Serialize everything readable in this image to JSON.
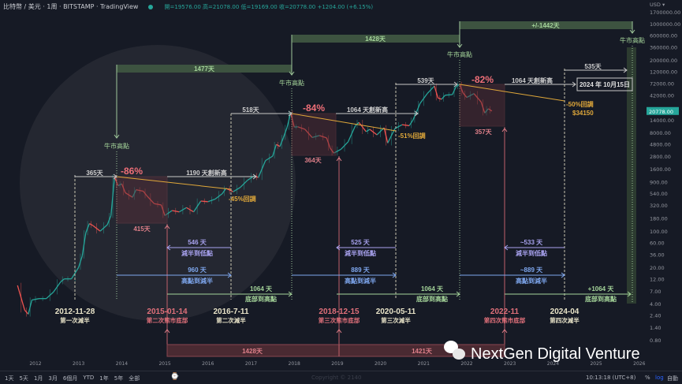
{
  "header": {
    "symbol": "比特幣 / 美元",
    "interval": "1周",
    "exchange": "BITSTAMP",
    "source": "TradingView",
    "ohlc": "開=19576.00 高=21078.00 低=19169.00 收=20778.00 +1204.00 (+6.15%)"
  },
  "colors": {
    "background": "#161a25",
    "up": "#26a69a",
    "down": "#ef5350",
    "peak": "#9fc79a",
    "bottom": "#e0707a",
    "halving": "#e8e3c8",
    "trend": "#e0a83a",
    "purple": "#a9a3f0",
    "blue": "#7fa8f0",
    "green": "#a5d59a"
  },
  "chart_data": {
    "type": "candlestick-line",
    "scale": "log",
    "currency_label": "USD ▾",
    "last_price": "20778.00",
    "y_ticks": [
      "1700000.00",
      "1000000.00",
      "600000.00",
      "360000.00",
      "200000.00",
      "120000.00",
      "72000.00",
      "42000.00",
      "14000.00",
      "8000.00",
      "4800.00",
      "2800.00",
      "1600.00",
      "900.00",
      "540.00",
      "320.00",
      "180.00",
      "100.00",
      "60.00",
      "36.00",
      "20.00",
      "12.00",
      "7.00",
      "4.00",
      "2.40",
      "1.40",
      "0.80"
    ],
    "x_ticks": [
      "2012",
      "2013",
      "2014",
      "2015",
      "2016",
      "2017",
      "2018",
      "2019",
      "2020",
      "2021",
      "2022",
      "2023",
      "2024",
      "2025",
      "2026"
    ],
    "price": [
      [
        "2011-08",
        9
      ],
      [
        "2011-10",
        3
      ],
      [
        "2011-11",
        2.5
      ],
      [
        "2011-12",
        4.7
      ],
      [
        "2012-02",
        5
      ],
      [
        "2012-04",
        5
      ],
      [
        "2012-06",
        6.7
      ],
      [
        "2012-08",
        10.5
      ],
      [
        "2012-09",
        12
      ],
      [
        "2012-11",
        12
      ],
      [
        "2013-01",
        20
      ],
      [
        "2013-02",
        33
      ],
      [
        "2013-03",
        93
      ],
      [
        "2013-04",
        140
      ],
      [
        "2013-05",
        128
      ],
      [
        "2013-07",
        100
      ],
      [
        "2013-09",
        133
      ],
      [
        "2013-10",
        200
      ],
      [
        "2013-11",
        1100
      ],
      [
        "2013-12",
        750
      ],
      [
        "2014-01",
        820
      ],
      [
        "2014-02",
        550
      ],
      [
        "2014-04",
        450
      ],
      [
        "2014-05",
        630
      ],
      [
        "2014-07",
        590
      ],
      [
        "2014-08",
        480
      ],
      [
        "2014-10",
        340
      ],
      [
        "2014-12",
        320
      ],
      [
        "2015-01",
        200
      ],
      [
        "2015-03",
        250
      ],
      [
        "2015-05",
        235
      ],
      [
        "2015-07",
        285
      ],
      [
        "2015-09",
        235
      ],
      [
        "2015-11",
        380
      ],
      [
        "2016-01",
        370
      ],
      [
        "2016-03",
        415
      ],
      [
        "2016-05",
        530
      ],
      [
        "2016-06",
        670
      ],
      [
        "2016-08",
        575
      ],
      [
        "2016-10",
        700
      ],
      [
        "2016-12",
        960
      ],
      [
        "2017-02",
        1180
      ],
      [
        "2017-03",
        1080
      ],
      [
        "2017-05",
        2300
      ],
      [
        "2017-07",
        2800
      ],
      [
        "2017-08",
        4700
      ],
      [
        "2017-09",
        4300
      ],
      [
        "2017-10",
        6400
      ],
      [
        "2017-11",
        10000
      ],
      [
        "2017-12",
        19000
      ],
      [
        "2018-01",
        10200
      ],
      [
        "2018-02",
        10300
      ],
      [
        "2018-04",
        9200
      ],
      [
        "2018-06",
        6400
      ],
      [
        "2018-08",
        7000
      ],
      [
        "2018-10",
        6300
      ],
      [
        "2018-11",
        4000
      ],
      [
        "2018-12",
        3200
      ],
      [
        "2019-02",
        3800
      ],
      [
        "2019-04",
        5300
      ],
      [
        "2019-06",
        10800
      ],
      [
        "2019-07",
        12500
      ],
      [
        "2019-09",
        8300
      ],
      [
        "2019-10",
        9200
      ],
      [
        "2019-12",
        7200
      ],
      [
        "2020-02",
        9900
      ],
      [
        "2020-03",
        5000
      ],
      [
        "2020-05",
        9500
      ],
      [
        "2020-07",
        11300
      ],
      [
        "2020-09",
        10800
      ],
      [
        "2020-10",
        13800
      ],
      [
        "2020-11",
        19700
      ],
      [
        "2020-12",
        29000
      ],
      [
        "2021-02",
        45000
      ],
      [
        "2021-04",
        63000
      ],
      [
        "2021-05",
        37000
      ],
      [
        "2021-06",
        35000
      ],
      [
        "2021-07",
        42000
      ],
      [
        "2021-09",
        43000
      ],
      [
        "2021-10",
        61000
      ],
      [
        "2021-11",
        68000
      ],
      [
        "2021-12",
        46000
      ],
      [
        "2022-01",
        38000
      ],
      [
        "2022-03",
        45000
      ],
      [
        "2022-05",
        31000
      ],
      [
        "2022-06",
        19000
      ],
      [
        "2022-07",
        23000
      ],
      [
        "2022-08",
        20778
      ]
    ]
  },
  "annotations": {
    "peak_label": "牛市高點",
    "cycle_bars": [
      "1477天",
      "1428天",
      "+/-1442天"
    ],
    "to_peak": [
      "365天",
      "518天",
      "539天",
      "535天"
    ],
    "drawdowns": [
      "-86%",
      "-84%",
      "-82%"
    ],
    "bear_days": [
      "415天",
      "364天",
      "357天"
    ],
    "new_high": [
      "1190 天創新高",
      "1064 天創新高",
      "1064 天創新高"
    ],
    "retrace": [
      "-45%回調",
      "-51%回調",
      "-50%回調"
    ],
    "retrace_price": "$34150",
    "target_date": "2024 年 10月15日",
    "halving_to_low": [
      "546 天",
      "525 天",
      "~533 天"
    ],
    "halving_to_low_label": "減半到低點",
    "peak_to_halving": [
      "960 天",
      "889 天",
      "~889 天"
    ],
    "peak_to_halving_label": "高點到減半",
    "bottom_to_peak": [
      "1064 天",
      "1064 天",
      "+1064 天"
    ],
    "bottom_to_peak_label": "底部到高點",
    "dates": [
      {
        "date": "2012-11-28",
        "label": "第一次減半"
      },
      {
        "date": "2015-01-14",
        "label": "第二次熊市底部"
      },
      {
        "date": "2016-7-11",
        "label": "第二次減半"
      },
      {
        "date": "2018-12-15",
        "label": "第三次熊市底部"
      },
      {
        "date": "2020-05-11",
        "label": "第三次減半"
      },
      {
        "date": "2022-11",
        "label": "第四次熊市底部"
      },
      {
        "date": "2024-04",
        "label": "第四次減半"
      }
    ],
    "bottom_cycles": [
      "1428天",
      "1421天"
    ]
  },
  "watermark": "NextGen Digital Venture",
  "copyright": "Copyright © 2140",
  "toolbar": {
    "ranges": [
      "1天",
      "5天",
      "1月",
      "3月",
      "6個月",
      "YTD",
      "1年",
      "5年",
      "全部"
    ],
    "time": "10:13:18 (UTC+8)",
    "percent": "%",
    "log": "log",
    "auto": "自動"
  }
}
